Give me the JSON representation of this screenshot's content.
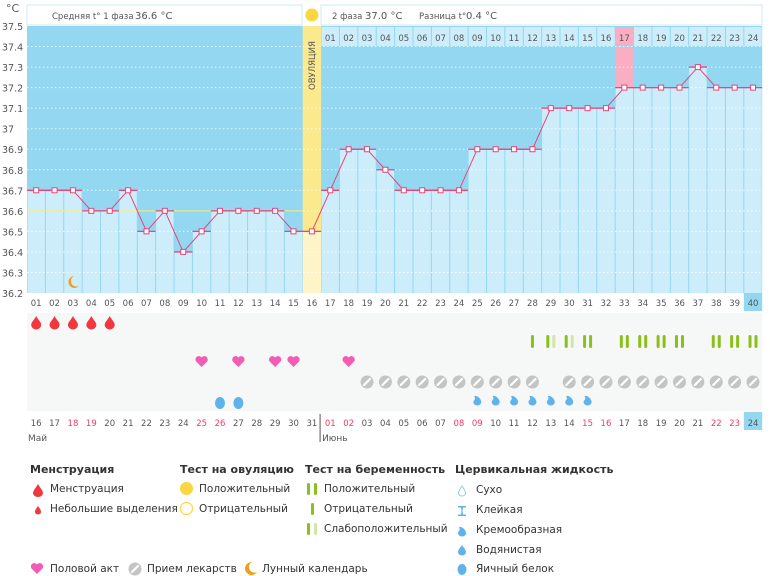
{
  "header": {
    "unit": "°C",
    "phase1_label": "Средняя t° 1 фаза",
    "phase1_value": "36.6 °C",
    "phase2_label": "2 фаза",
    "phase2_value": "37.0 °C",
    "diff_label": "Разница t°",
    "diff_value": "0.4 °C",
    "ovulation_label": "ОВУЛЯЦИЯ"
  },
  "chart_data": {
    "type": "line",
    "title": "",
    "xlabel": "",
    "ylabel": "°C",
    "ylim": [
      36.2,
      37.5
    ],
    "y_ticks": [
      "37.5",
      "37.4",
      "37.3",
      "37.2",
      "37.1",
      "37",
      "36.9",
      "36.8",
      "36.7",
      "36.6",
      "36.5",
      "36.4",
      "36.3",
      "36.2"
    ],
    "cycle_days": [
      "01",
      "02",
      "03",
      "04",
      "05",
      "06",
      "07",
      "08",
      "09",
      "10",
      "11",
      "12",
      "13",
      "14",
      "15",
      "16",
      "17",
      "18",
      "19",
      "20",
      "21",
      "22",
      "23",
      "24",
      "25",
      "26",
      "27",
      "28",
      "29",
      "30",
      "31",
      "32",
      "33",
      "34",
      "35",
      "36",
      "37",
      "38",
      "39",
      "40"
    ],
    "temperatures": [
      36.7,
      36.7,
      36.7,
      36.6,
      36.6,
      36.7,
      36.5,
      36.6,
      36.4,
      36.5,
      36.6,
      36.6,
      36.6,
      36.6,
      36.5,
      36.5,
      36.7,
      36.9,
      36.9,
      36.8,
      36.7,
      36.7,
      36.7,
      36.7,
      36.9,
      36.9,
      36.9,
      36.9,
      37.1,
      37.1,
      37.1,
      37.1,
      37.2,
      37.2,
      37.2,
      37.2,
      37.3,
      37.2,
      37.2,
      37.2
    ],
    "ovulation_day": 16,
    "phase1_average": 36.6,
    "phase2_days": [
      "01",
      "02",
      "03",
      "04",
      "05",
      "06",
      "07",
      "08",
      "09",
      "10",
      "11",
      "12",
      "13",
      "14",
      "15",
      "16",
      "17",
      "18",
      "19",
      "20",
      "21",
      "22",
      "23",
      "24"
    ],
    "phase2_highlight_day": 33,
    "current_day": 40,
    "dates": [
      "16",
      "17",
      "18",
      "19",
      "20",
      "21",
      "22",
      "23",
      "24",
      "25",
      "26",
      "27",
      "28",
      "29",
      "30",
      "31",
      "01",
      "02",
      "03",
      "04",
      "05",
      "06",
      "07",
      "08",
      "09",
      "10",
      "11",
      "12",
      "13",
      "14",
      "15",
      "16",
      "17",
      "18",
      "19",
      "20",
      "21",
      "22",
      "23",
      "24"
    ],
    "weekend_days": [
      3,
      4,
      10,
      11,
      17,
      18,
      24,
      25,
      31,
      32,
      38,
      39
    ],
    "months": [
      {
        "label": "Май",
        "start_day": 1
      },
      {
        "label": "Июнь",
        "start_day": 17
      }
    ],
    "markers": {
      "menstruation": [
        1,
        2,
        3,
        4,
        5
      ],
      "pregnancy_test": {
        "positive": [
          31,
          33,
          34,
          35,
          36,
          38,
          39,
          40
        ],
        "negative": [
          28
        ],
        "weak": [
          29,
          30
        ]
      },
      "intercourse": [
        10,
        12,
        14,
        15,
        18
      ],
      "medication": [
        19,
        20,
        21,
        22,
        23,
        24,
        25,
        26,
        27,
        28,
        30,
        31,
        32,
        33,
        34,
        35,
        36,
        37,
        38,
        39,
        40
      ],
      "fluid_creamy": [
        25,
        26,
        27,
        28,
        29,
        30,
        31
      ],
      "fluid_eggwhite": [
        11,
        12
      ],
      "lunar": [
        3
      ]
    }
  },
  "legend": {
    "menstruation": {
      "title": "Менструация",
      "items": [
        "Менструация",
        "Небольшие выделения"
      ]
    },
    "ovulation_test": {
      "title": "Тест на овуляцию",
      "items": [
        "Положительный",
        "Отрицательный"
      ]
    },
    "pregnancy_test": {
      "title": "Тест на беременность",
      "items": [
        "Положительный",
        "Отрицательный",
        "Слабоположительный"
      ]
    },
    "fluid": {
      "title": "Цервикальная жидкость",
      "items": [
        "Сухо",
        "Клейкая",
        "Кремообразная",
        "Водянистая",
        "Яичный белок"
      ]
    },
    "other": [
      "Половой акт",
      "Прием лекарств",
      "Лунный календарь"
    ]
  },
  "colors": {
    "dark": "#93d7f1",
    "light": "#cdedfb",
    "line": "#e8457a",
    "ovulation": "#fbe98d",
    "highlight": "#f9aec3",
    "green": "#8bbf1a",
    "green_light": "#d3e6a8",
    "menses": "#f0383e",
    "heart": "#f25cb5",
    "pill": "#c4c4c4",
    "fluid": "#5fb3ea",
    "moon": "#f39c1a"
  }
}
